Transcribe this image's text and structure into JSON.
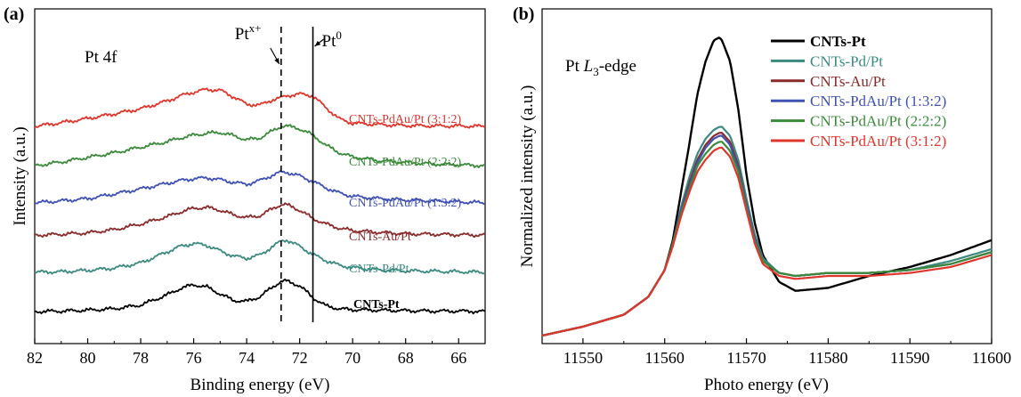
{
  "chart_data": [
    {
      "panel_label": "(a)",
      "type": "line",
      "annotation": "Pt 4f",
      "xlabel": "Binding energy (eV)",
      "ylabel": "Intensity (a.u.)",
      "xlim": [
        82,
        65
      ],
      "x_reversed": true,
      "xticks": [
        82,
        80,
        78,
        76,
        74,
        72,
        70,
        68,
        66
      ],
      "y_ticks_shown": false,
      "grid": false,
      "legend_placement": "inline-right",
      "reference_lines": [
        {
          "label_main": "Pt",
          "label_sup": "x+",
          "x": 72.7,
          "style": "dashed"
        },
        {
          "label_main": "Pt",
          "label_sup": "0",
          "x": 71.5,
          "style": "solid"
        }
      ],
      "x": [
        82,
        81,
        80,
        79,
        78,
        77,
        76.5,
        76,
        75.5,
        75,
        74.5,
        74,
        73.5,
        73,
        72.7,
        72.5,
        72,
        71.5,
        71,
        70.5,
        70,
        69,
        68,
        67,
        66,
        65
      ],
      "series": [
        {
          "name": "CNTs-Pt",
          "color": "#000000",
          "offset": 0.0,
          "values": [
            0.0,
            0.01,
            0.03,
            0.06,
            0.14,
            0.36,
            0.5,
            0.58,
            0.53,
            0.38,
            0.24,
            0.22,
            0.32,
            0.54,
            0.65,
            0.66,
            0.56,
            0.3,
            0.12,
            0.06,
            0.04,
            0.03,
            0.02,
            0.01,
            0.01,
            0.0
          ]
        },
        {
          "name": "CNTs-Pd/Pt",
          "color": "#3a8a80",
          "offset": 0.85,
          "values": [
            0.0,
            0.01,
            0.04,
            0.09,
            0.2,
            0.44,
            0.56,
            0.62,
            0.58,
            0.46,
            0.35,
            0.3,
            0.37,
            0.56,
            0.67,
            0.7,
            0.56,
            0.38,
            0.25,
            0.15,
            0.1,
            0.05,
            0.03,
            0.02,
            0.01,
            0.0
          ]
        },
        {
          "name": "CNTs-Au/Pt",
          "color": "#8b2a2a",
          "offset": 1.65,
          "values": [
            0.0,
            0.02,
            0.05,
            0.12,
            0.24,
            0.4,
            0.5,
            0.58,
            0.6,
            0.54,
            0.44,
            0.38,
            0.42,
            0.58,
            0.66,
            0.66,
            0.54,
            0.36,
            0.24,
            0.15,
            0.1,
            0.06,
            0.03,
            0.02,
            0.01,
            0.0
          ]
        },
        {
          "name": "CNTs-PdAu/Pt (1:3:2)",
          "color": "#3f51b5",
          "offset": 2.35,
          "values": [
            0.0,
            0.04,
            0.09,
            0.19,
            0.3,
            0.42,
            0.48,
            0.52,
            0.54,
            0.5,
            0.44,
            0.4,
            0.48,
            0.6,
            0.66,
            0.66,
            0.58,
            0.46,
            0.32,
            0.21,
            0.14,
            0.09,
            0.06,
            0.04,
            0.02,
            0.0
          ]
        },
        {
          "name": "CNTs-PdAu/Pt (2:2:2)",
          "color": "#3a8a3a",
          "offset": 3.15,
          "values": [
            0.0,
            0.08,
            0.18,
            0.28,
            0.4,
            0.52,
            0.6,
            0.66,
            0.7,
            0.72,
            0.65,
            0.56,
            0.6,
            0.76,
            0.85,
            0.86,
            0.8,
            0.66,
            0.44,
            0.28,
            0.19,
            0.11,
            0.07,
            0.04,
            0.02,
            0.0
          ]
        },
        {
          "name": "CNTs-PdAu/Pt (3:1:2)",
          "color": "#e0352b",
          "offset": 4.0,
          "values": [
            0.0,
            0.08,
            0.17,
            0.27,
            0.38,
            0.55,
            0.66,
            0.74,
            0.8,
            0.78,
            0.64,
            0.48,
            0.46,
            0.58,
            0.62,
            0.66,
            0.7,
            0.66,
            0.4,
            0.16,
            0.07,
            0.04,
            0.02,
            0.01,
            0.01,
            0.0
          ]
        }
      ]
    },
    {
      "panel_label": "(b)",
      "type": "line",
      "annotation_pre": "Pt ",
      "annotation_italic": "L",
      "annotation_sub": "3",
      "annotation_post": "-edge",
      "xlabel": "Photo energy (eV)",
      "ylabel": "Normalized intensity (a.u.)",
      "xlim": [
        11545,
        11600
      ],
      "xticks": [
        11550,
        11560,
        11570,
        11580,
        11590,
        11600
      ],
      "y_ticks_shown": false,
      "grid": false,
      "legend_placement": "top-right",
      "x": [
        11545,
        11550,
        11555,
        11558,
        11560,
        11561,
        11562,
        11563,
        11564,
        11565,
        11566,
        11566.7,
        11567,
        11568,
        11569,
        11570,
        11571,
        11572,
        11574,
        11576,
        11580,
        11585,
        11590,
        11595,
        11600
      ],
      "series": [
        {
          "name": "CNTs-Pt",
          "color": "#000000",
          "values": [
            0.0,
            0.03,
            0.07,
            0.13,
            0.22,
            0.32,
            0.48,
            0.64,
            0.81,
            0.92,
            0.99,
            1.0,
            0.99,
            0.92,
            0.76,
            0.54,
            0.38,
            0.27,
            0.18,
            0.15,
            0.16,
            0.2,
            0.23,
            0.27,
            0.32
          ]
        },
        {
          "name": "CNTs-Pd/Pt",
          "color": "#3a8a80",
          "values": [
            0.0,
            0.03,
            0.07,
            0.13,
            0.22,
            0.31,
            0.43,
            0.53,
            0.61,
            0.66,
            0.69,
            0.7,
            0.7,
            0.67,
            0.59,
            0.46,
            0.34,
            0.26,
            0.21,
            0.2,
            0.21,
            0.21,
            0.22,
            0.25,
            0.29
          ]
        },
        {
          "name": "CNTs-Au/Pt",
          "color": "#8b2a2a",
          "values": [
            0.0,
            0.03,
            0.07,
            0.13,
            0.22,
            0.31,
            0.42,
            0.51,
            0.59,
            0.64,
            0.67,
            0.68,
            0.68,
            0.65,
            0.57,
            0.44,
            0.33,
            0.25,
            0.21,
            0.2,
            0.21,
            0.21,
            0.22,
            0.24,
            0.28
          ]
        },
        {
          "name": "CNTs-PdAu/Pt (1:3:2)",
          "color": "#3f51b5",
          "values": [
            0.0,
            0.03,
            0.07,
            0.13,
            0.22,
            0.31,
            0.42,
            0.5,
            0.58,
            0.63,
            0.66,
            0.67,
            0.67,
            0.64,
            0.56,
            0.44,
            0.33,
            0.25,
            0.21,
            0.2,
            0.21,
            0.21,
            0.22,
            0.24,
            0.28
          ]
        },
        {
          "name": "CNTs-PdAu/Pt (2:2:2)",
          "color": "#3a8a3a",
          "values": [
            0.0,
            0.03,
            0.07,
            0.13,
            0.22,
            0.31,
            0.41,
            0.49,
            0.57,
            0.61,
            0.64,
            0.65,
            0.65,
            0.62,
            0.55,
            0.43,
            0.32,
            0.25,
            0.21,
            0.2,
            0.21,
            0.21,
            0.22,
            0.24,
            0.28
          ]
        },
        {
          "name": "CNTs-PdAu/Pt (3:1:2)",
          "color": "#e0352b",
          "values": [
            0.0,
            0.03,
            0.07,
            0.13,
            0.22,
            0.3,
            0.4,
            0.48,
            0.55,
            0.59,
            0.62,
            0.63,
            0.63,
            0.6,
            0.53,
            0.42,
            0.31,
            0.24,
            0.2,
            0.19,
            0.2,
            0.2,
            0.21,
            0.23,
            0.27
          ]
        }
      ]
    }
  ]
}
